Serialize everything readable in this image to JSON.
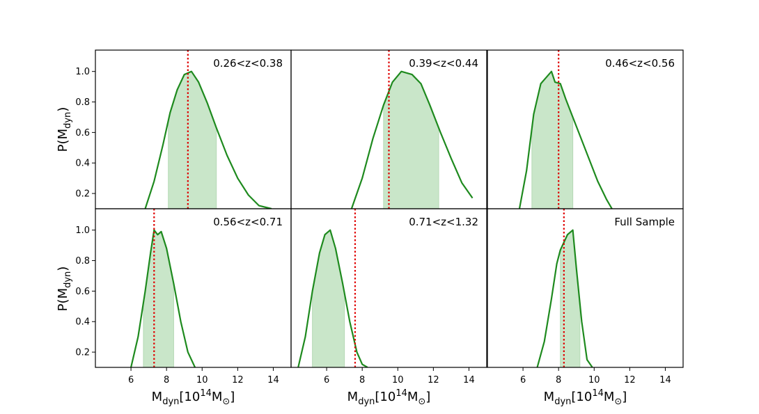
{
  "chart_data": {
    "type": "line",
    "layout": "2x3 grid, shared x and y axes",
    "xlabel": {
      "main": "M",
      "sub": "dyn",
      "pre": "[10",
      "sup": "14",
      "post": "M",
      "post_sub": "⊙",
      "close": "]"
    },
    "ylabel": {
      "main": "P(M",
      "sub": "dyn",
      "close": ")"
    },
    "xlim": [
      4.0,
      15.0
    ],
    "ylim": [
      0.1,
      1.14
    ],
    "xticks": [
      6,
      8,
      10,
      12,
      14
    ],
    "yticks": [
      0.2,
      0.4,
      0.6,
      0.8,
      1.0
    ],
    "ytick_labels": [
      "0.2",
      "0.4",
      "0.6",
      "0.8",
      "1.0"
    ],
    "colors": {
      "curve": "#1e8a1e",
      "fill": "#c9e6c9",
      "marker": "#e00000"
    },
    "panels": [
      {
        "label": "0.26<z<0.38",
        "x": [
          6.8,
          7.3,
          7.8,
          8.2,
          8.6,
          9.0,
          9.4,
          9.8,
          10.3,
          10.8,
          11.4,
          12.0,
          12.6,
          13.2,
          13.9
        ],
        "y": [
          0.1,
          0.28,
          0.52,
          0.73,
          0.88,
          0.98,
          1.0,
          0.93,
          0.79,
          0.63,
          0.45,
          0.3,
          0.19,
          0.12,
          0.1
        ],
        "band": [
          8.1,
          10.8
        ],
        "marker": 9.2
      },
      {
        "label": "0.39<z<0.44",
        "x": [
          7.4,
          8.0,
          8.6,
          9.2,
          9.7,
          10.2,
          10.8,
          11.3,
          11.8,
          12.4,
          13.0,
          13.6,
          14.2
        ],
        "y": [
          0.1,
          0.3,
          0.56,
          0.78,
          0.93,
          1.0,
          0.98,
          0.92,
          0.78,
          0.6,
          0.43,
          0.27,
          0.17
        ],
        "band": [
          9.2,
          12.3
        ],
        "marker": 9.5
      },
      {
        "label": "0.46<z<0.56",
        "x": [
          5.8,
          6.2,
          6.6,
          7.0,
          7.3,
          7.6,
          7.8,
          8.1,
          8.4,
          8.8,
          9.2,
          9.7,
          10.2,
          10.7,
          11.0
        ],
        "y": [
          0.1,
          0.35,
          0.72,
          0.92,
          0.96,
          1.0,
          0.93,
          0.92,
          0.82,
          0.7,
          0.58,
          0.43,
          0.28,
          0.16,
          0.1
        ],
        "band": [
          6.5,
          8.8
        ],
        "marker": 8.0
      },
      {
        "label": "0.56<z<0.71",
        "x": [
          6.0,
          6.4,
          6.8,
          7.1,
          7.3,
          7.5,
          7.7,
          8.0,
          8.4,
          8.8,
          9.2,
          9.6
        ],
        "y": [
          0.1,
          0.3,
          0.6,
          0.85,
          1.0,
          0.97,
          0.99,
          0.88,
          0.65,
          0.4,
          0.2,
          0.1
        ],
        "band": [
          6.7,
          8.4
        ],
        "marker": 7.3
      },
      {
        "label": "0.71<z<1.32",
        "x": [
          4.4,
          4.8,
          5.2,
          5.6,
          5.9,
          6.2,
          6.5,
          6.9,
          7.3,
          7.7,
          8.0,
          8.3
        ],
        "y": [
          0.1,
          0.3,
          0.6,
          0.85,
          0.97,
          1.0,
          0.88,
          0.65,
          0.4,
          0.2,
          0.12,
          0.1
        ],
        "band": [
          5.2,
          7.0
        ],
        "marker": 7.6
      },
      {
        "label": "Full Sample",
        "x": [
          6.8,
          7.2,
          7.6,
          7.9,
          8.1,
          8.3,
          8.5,
          8.8,
          9.0,
          9.3,
          9.6,
          9.9
        ],
        "y": [
          0.1,
          0.27,
          0.55,
          0.78,
          0.87,
          0.92,
          0.97,
          1.0,
          0.75,
          0.4,
          0.15,
          0.1
        ],
        "band": [
          8.1,
          9.2
        ],
        "marker": 8.3
      }
    ]
  }
}
